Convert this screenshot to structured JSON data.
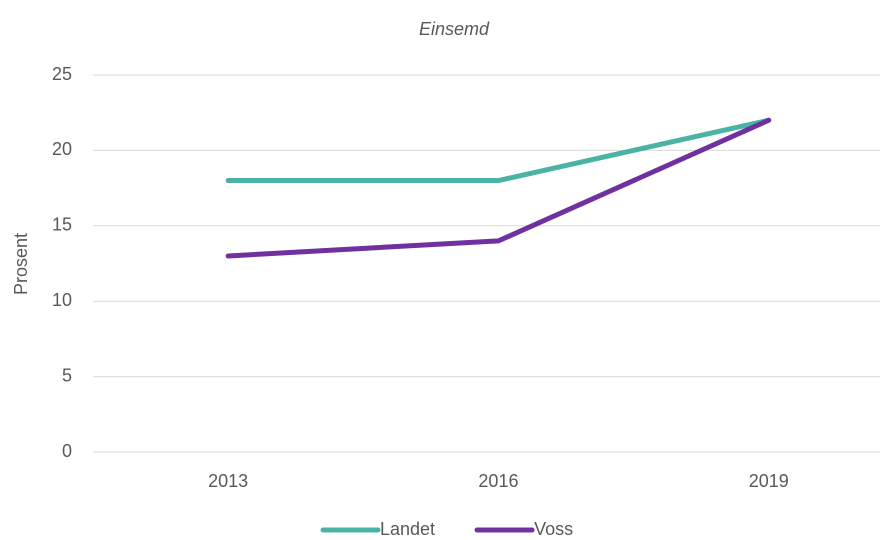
{
  "chart_data": {
    "type": "line",
    "title": "Einsemd",
    "y_label": "Prosent",
    "categories": [
      "2013",
      "2016",
      "2019"
    ],
    "series": [
      {
        "name": "Landet",
        "color": "#4bb3a6",
        "values": [
          18,
          18,
          22
        ]
      },
      {
        "name": "Voss",
        "color": "#7030a0",
        "values": [
          13,
          14,
          22
        ]
      }
    ],
    "ylim": [
      0,
      25
    ],
    "yticks": [
      0,
      5,
      10,
      15,
      20,
      25
    ],
    "grid": true,
    "legend": "bottom"
  }
}
